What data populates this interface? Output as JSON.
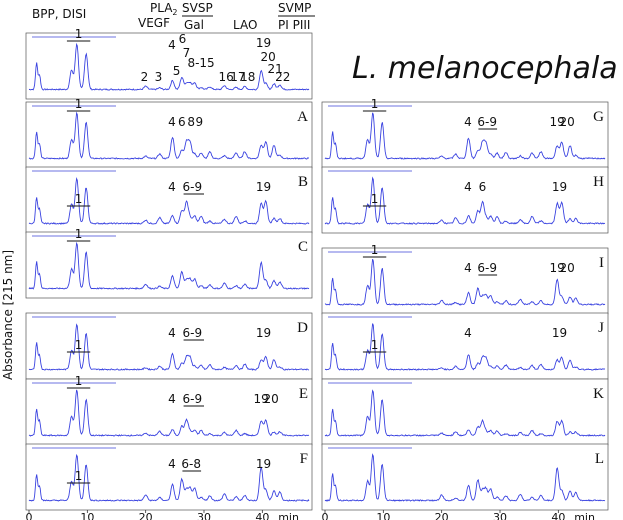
{
  "chart_data": {
    "type": "line",
    "title": "L. melanocephala",
    "ylabel": "Absorbance [215 nm]",
    "xlabel": "min",
    "x_ticks": [
      0,
      10,
      20,
      30,
      40
    ],
    "xlim": [
      0,
      48
    ],
    "color": "#3a43e0",
    "header_labels": [
      {
        "id": "bpp",
        "text": "BPP, DISI"
      },
      {
        "id": "pla2",
        "text": "PLA",
        "sub": "2"
      },
      {
        "id": "vegf",
        "text": "VEGF"
      },
      {
        "id": "svsp",
        "text": "SVSP"
      },
      {
        "id": "gal",
        "text": "Gal"
      },
      {
        "id": "lao",
        "text": "LAO"
      },
      {
        "id": "svmp",
        "text": "SVMP"
      },
      {
        "id": "pipiii",
        "text": "PI PIII"
      }
    ],
    "peaks": [
      {
        "rt": 8.2,
        "h": 0.95
      },
      {
        "rt": 9.8,
        "h": 0.75
      },
      {
        "rt": 7.3,
        "h": 0.4
      },
      {
        "rt": 1.3,
        "h": 0.55
      },
      {
        "rt": 1.8,
        "h": 0.3
      },
      {
        "rt": 20.0,
        "h": 0.1
      },
      {
        "rt": 22.4,
        "h": 0.12
      },
      {
        "rt": 24.6,
        "h": 0.4
      },
      {
        "rt": 26.2,
        "h": 0.38
      },
      {
        "rt": 27.0,
        "h": 0.45
      },
      {
        "rt": 27.6,
        "h": 0.3
      },
      {
        "rt": 28.4,
        "h": 0.22
      },
      {
        "rt": 29.5,
        "h": 0.15
      },
      {
        "rt": 31.0,
        "h": 0.12
      },
      {
        "rt": 33.5,
        "h": 0.12
      },
      {
        "rt": 35.5,
        "h": 0.15
      },
      {
        "rt": 37.0,
        "h": 0.13
      },
      {
        "rt": 39.8,
        "h": 0.6
      },
      {
        "rt": 40.6,
        "h": 0.45
      },
      {
        "rt": 42.0,
        "h": 0.25
      },
      {
        "rt": 43.0,
        "h": 0.15
      }
    ],
    "panels": [
      {
        "id": "top",
        "label": "",
        "annotations": [
          {
            "text": "1",
            "rt": 8.5,
            "bar": [
              6.5,
              10.5
            ]
          },
          {
            "text": "2",
            "rt": 19.8
          },
          {
            "text": "3",
            "rt": 22.2
          },
          {
            "text": "4",
            "rt": 24.5
          },
          {
            "text": "5",
            "rt": 25.3
          },
          {
            "text": "6",
            "rt": 26.3
          },
          {
            "text": "7",
            "rt": 27.0
          },
          {
            "text": "8-15",
            "rt": 29.5
          },
          {
            "text": "16",
            "rt": 33.8
          },
          {
            "text": "17",
            "rt": 35.8
          },
          {
            "text": "18",
            "rt": 37.5
          },
          {
            "text": "19",
            "rt": 40.2
          },
          {
            "text": "20",
            "rt": 41.0
          },
          {
            "text": "21",
            "rt": 42.2
          },
          {
            "text": "22",
            "rt": 43.5
          }
        ]
      },
      {
        "id": "A",
        "label": "A",
        "annotations": [
          {
            "text": "1",
            "rt": 8.5,
            "bar": [
              6.5,
              10.5
            ]
          },
          {
            "text": "4",
            "rt": 24.5
          },
          {
            "text": "6",
            "rt": 26.2
          },
          {
            "text": "8",
            "rt": 27.8
          },
          {
            "text": "9",
            "rt": 29.2
          }
        ]
      },
      {
        "id": "B",
        "label": "B",
        "annotations": [
          {
            "text": "1",
            "rt": 8.5,
            "bar": [
              6.5,
              10.5
            ]
          },
          {
            "text": "4",
            "rt": 24.5
          },
          {
            "text": "6-9",
            "rt": 28.0,
            "bar": [
              26.5,
              30.0
            ]
          },
          {
            "text": "19",
            "rt": 40.2
          }
        ]
      },
      {
        "id": "C",
        "label": "C",
        "annotations": [
          {
            "text": "1",
            "rt": 8.5,
            "bar": [
              6.5,
              10.5
            ]
          }
        ]
      },
      {
        "id": "D",
        "label": "D",
        "annotations": [
          {
            "text": "1",
            "rt": 8.5,
            "bar": [
              6.5,
              10.5
            ]
          },
          {
            "text": "4",
            "rt": 24.5
          },
          {
            "text": "6-9",
            "rt": 28.0,
            "bar": [
              26.5,
              30.0
            ]
          },
          {
            "text": "19",
            "rt": 40.2
          }
        ]
      },
      {
        "id": "E",
        "label": "E",
        "annotations": [
          {
            "text": "1",
            "rt": 8.5,
            "bar": [
              6.5,
              10.5
            ]
          },
          {
            "text": "4",
            "rt": 24.5
          },
          {
            "text": "6-9",
            "rt": 28.0,
            "bar": [
              26.5,
              30.0
            ]
          },
          {
            "text": "19",
            "rt": 39.8
          },
          {
            "text": "20",
            "rt": 41.5
          }
        ]
      },
      {
        "id": "F",
        "label": "F",
        "annotations": [
          {
            "text": "1",
            "rt": 8.5,
            "bar": [
              6.5,
              10.5
            ]
          },
          {
            "text": "4",
            "rt": 24.5
          },
          {
            "text": "6-8",
            "rt": 27.8,
            "bar": [
              26.3,
              29.5
            ]
          },
          {
            "text": "19",
            "rt": 40.2
          }
        ]
      },
      {
        "id": "G",
        "label": "G",
        "annotations": [
          {
            "text": "1",
            "rt": 8.5,
            "bar": [
              6.5,
              10.5
            ]
          },
          {
            "text": "4",
            "rt": 24.5
          },
          {
            "text": "6-9",
            "rt": 27.8,
            "bar": [
              26.3,
              29.5
            ]
          },
          {
            "text": "19",
            "rt": 39.8
          },
          {
            "text": "20",
            "rt": 41.5
          }
        ]
      },
      {
        "id": "H",
        "label": "H",
        "annotations": [
          {
            "text": "1",
            "rt": 8.5,
            "bar": [
              6.5,
              10.5
            ]
          },
          {
            "text": "4",
            "rt": 24.5
          },
          {
            "text": "6",
            "rt": 27.0
          },
          {
            "text": "19",
            "rt": 40.2
          }
        ]
      },
      {
        "id": "I",
        "label": "I",
        "annotations": [
          {
            "text": "1",
            "rt": 8.5,
            "bar": [
              6.5,
              10.5
            ]
          },
          {
            "text": "4",
            "rt": 24.5
          },
          {
            "text": "6-9",
            "rt": 27.8,
            "bar": [
              26.3,
              29.5
            ]
          },
          {
            "text": "19",
            "rt": 39.8
          },
          {
            "text": "20",
            "rt": 41.5
          }
        ]
      },
      {
        "id": "J",
        "label": "J",
        "annotations": [
          {
            "text": "1",
            "rt": 8.5,
            "bar": [
              6.5,
              10.5
            ]
          },
          {
            "text": "4",
            "rt": 24.5
          },
          {
            "text": "19",
            "rt": 40.2
          }
        ]
      },
      {
        "id": "K",
        "label": "K",
        "annotations": []
      },
      {
        "id": "L",
        "label": "L",
        "annotations": []
      }
    ]
  }
}
